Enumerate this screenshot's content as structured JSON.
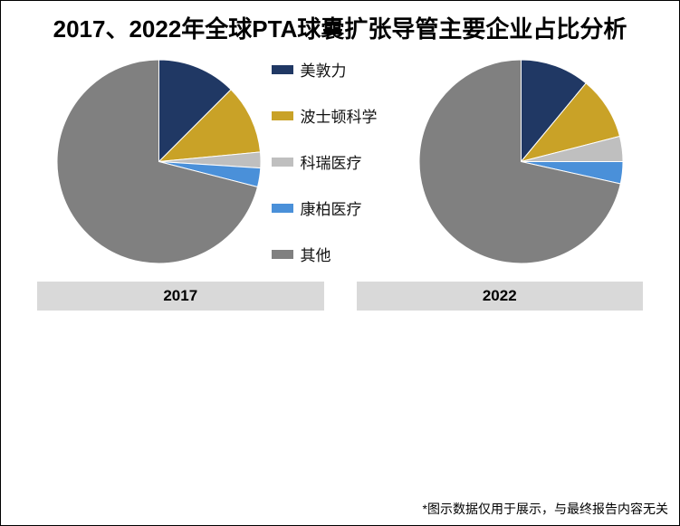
{
  "title": "2017、2022年全球PTA球囊扩张导管主要企业占比分析",
  "title_fontsize": 26,
  "legend_fontsize": 17,
  "year_label_fontsize": 17,
  "footnote_fontsize": 14,
  "footnote": "*图示数据仅用于展示，与最终报告内容无关",
  "background_color": "#ffffff",
  "border_color": "#000000",
  "year_label_bg": "#d9d9d9",
  "legend": [
    {
      "label": "美敦力",
      "color": "#203864"
    },
    {
      "label": "波士顿科学",
      "color": "#c9a227"
    },
    {
      "label": "科瑞医疗",
      "color": "#bfbfbf"
    },
    {
      "label": "康柏医疗",
      "color": "#4a90d9"
    },
    {
      "label": "其他",
      "color": "#808080"
    }
  ],
  "pies": [
    {
      "year": "2017",
      "diameter": 225,
      "start_angle_deg": -90,
      "direction": "clockwise",
      "slices": [
        {
          "label": "美敦力",
          "value": 12.5,
          "color": "#203864"
        },
        {
          "label": "波士顿科学",
          "value": 11.0,
          "color": "#c9a227"
        },
        {
          "label": "科瑞医疗",
          "value": 2.5,
          "color": "#bfbfbf"
        },
        {
          "label": "康柏医疗",
          "value": 3.0,
          "color": "#4a90d9"
        },
        {
          "label": "其他",
          "value": 71.0,
          "color": "#808080"
        }
      ]
    },
    {
      "year": "2022",
      "diameter": 225,
      "start_angle_deg": -90,
      "direction": "clockwise",
      "slices": [
        {
          "label": "美敦力",
          "value": 11.0,
          "color": "#203864"
        },
        {
          "label": "波士顿科学",
          "value": 10.0,
          "color": "#c9a227"
        },
        {
          "label": "科瑞医疗",
          "value": 4.0,
          "color": "#bfbfbf"
        },
        {
          "label": "康柏医疗",
          "value": 3.5,
          "color": "#4a90d9"
        },
        {
          "label": "其他",
          "value": 71.5,
          "color": "#808080"
        }
      ]
    }
  ]
}
